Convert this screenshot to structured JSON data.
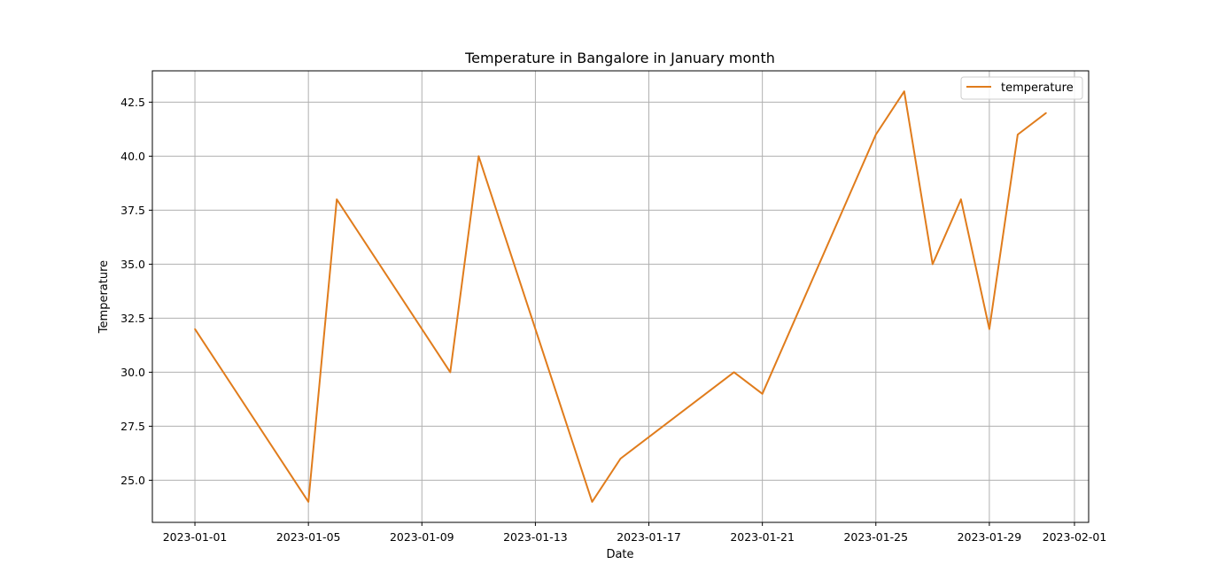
{
  "chart_data": {
    "type": "line",
    "title": "Temperature in Bangalore in January month",
    "xlabel": "Date",
    "ylabel": "Temperature",
    "x": [
      "2023-01-01",
      "2023-01-05",
      "2023-01-06",
      "2023-01-10",
      "2023-01-11",
      "2023-01-15",
      "2023-01-16",
      "2023-01-20",
      "2023-01-21",
      "2023-01-25",
      "2023-01-26",
      "2023-01-27",
      "2023-01-28",
      "2023-01-29",
      "2023-01-30",
      "2023-01-31"
    ],
    "series": [
      {
        "name": "temperature",
        "color": "#e07c1c",
        "values": [
          32,
          24,
          38,
          30,
          40,
          24,
          26,
          30,
          29,
          41,
          43,
          35,
          38,
          32,
          41,
          42
        ]
      }
    ],
    "x_ticks": [
      "2023-01-01",
      "2023-01-05",
      "2023-01-09",
      "2023-01-13",
      "2023-01-17",
      "2023-01-21",
      "2023-01-25",
      "2023-01-29",
      "2023-02-01"
    ],
    "y_ticks": [
      "25.0",
      "27.5",
      "30.0",
      "32.5",
      "35.0",
      "37.5",
      "40.0",
      "42.5"
    ],
    "xlim": [
      "2022-12-30 12:00",
      "2023-02-01 12:00"
    ],
    "ylim": [
      23.05,
      43.95
    ],
    "grid": true,
    "legend": {
      "position": "top-right",
      "entries": [
        "temperature"
      ]
    }
  }
}
